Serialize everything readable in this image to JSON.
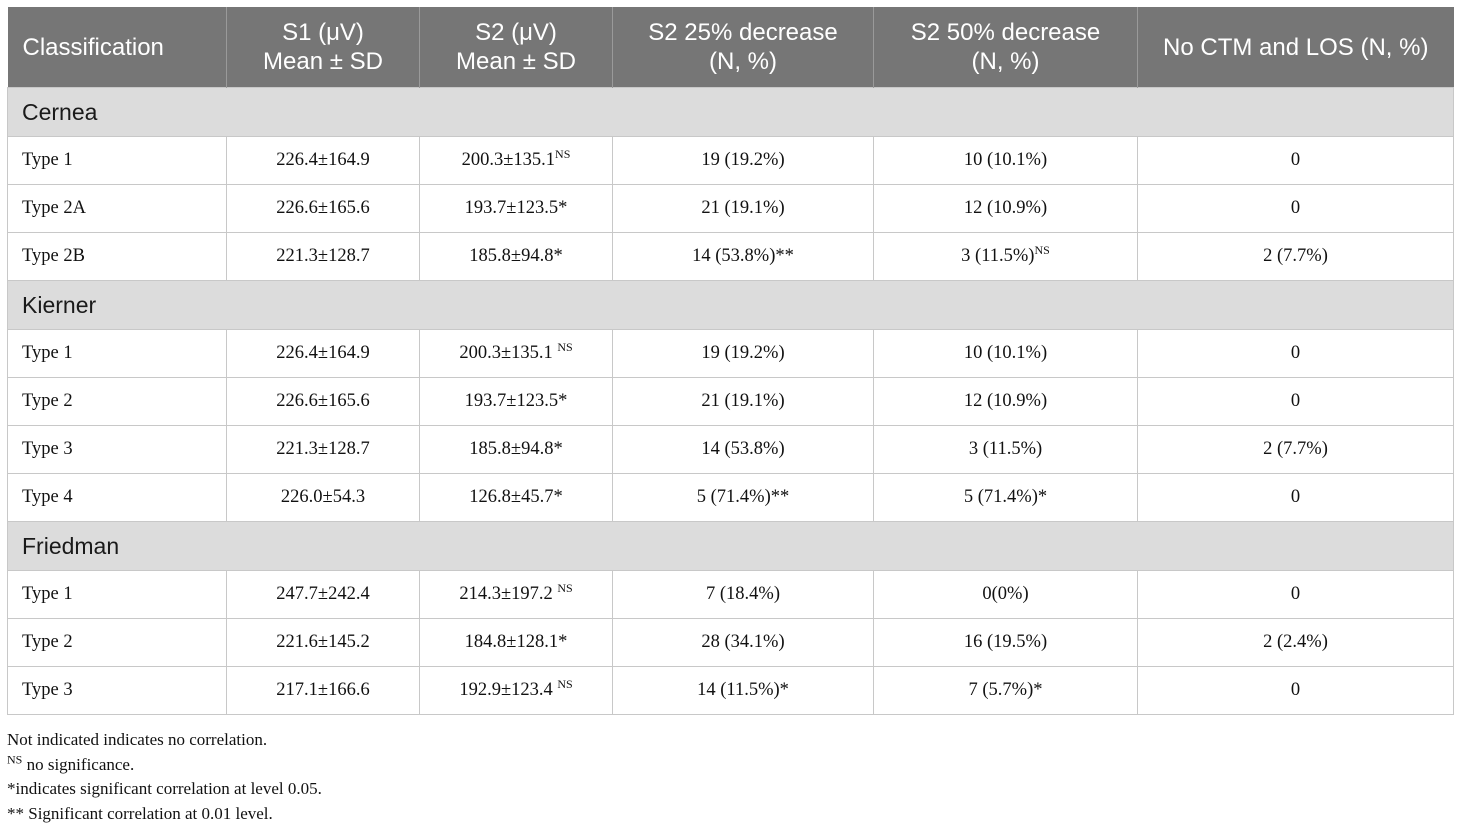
{
  "headers": [
    {
      "line1": "Classification",
      "line2": ""
    },
    {
      "line1": "S1 (μV)",
      "line2": "Mean ± SD"
    },
    {
      "line1": "S2 (μV)",
      "line2": "Mean ± SD"
    },
    {
      "line1": "S2 25% decrease",
      "line2": "(N, %)"
    },
    {
      "line1": "S2 50% decrease",
      "line2": "(N, %)"
    },
    {
      "line1": "No CTM and LOS (N, %)",
      "line2": ""
    }
  ],
  "groups": [
    {
      "name": "Cernea",
      "rows": [
        {
          "type": "Type 1",
          "s1": "226.4±164.9",
          "s2": "200.3±135.1",
          "s2_sup": "NS",
          "d25": "19 (19.2%)",
          "d25_sup": "",
          "d50": "10 (10.1%)",
          "d50_sup": "",
          "no_ctm": "0"
        },
        {
          "type": "Type 2A",
          "s1": "226.6±165.6",
          "s2": "193.7±123.5*",
          "s2_sup": "",
          "d25": "21 (19.1%)",
          "d25_sup": "",
          "d50": "12 (10.9%)",
          "d50_sup": "",
          "no_ctm": "0"
        },
        {
          "type": "Type 2B",
          "s1": "221.3±128.7",
          "s2": "185.8±94.8*",
          "s2_sup": "",
          "d25": "14 (53.8%)**",
          "d25_sup": "",
          "d50": "3 (11.5%)",
          "d50_sup": "NS",
          "no_ctm": "2 (7.7%)"
        }
      ]
    },
    {
      "name": "Kierner",
      "rows": [
        {
          "type": "Type 1",
          "s1": "226.4±164.9",
          "s2": "200.3±135.1 ",
          "s2_sup": "NS",
          "d25": "19 (19.2%)",
          "d25_sup": "",
          "d50": "10 (10.1%)",
          "d50_sup": "",
          "no_ctm": "0"
        },
        {
          "type": "Type 2",
          "s1": "226.6±165.6",
          "s2": "193.7±123.5*",
          "s2_sup": "",
          "d25": "21 (19.1%)",
          "d25_sup": "",
          "d50": "12 (10.9%)",
          "d50_sup": "",
          "no_ctm": "0"
        },
        {
          "type": "Type 3",
          "s1": "221.3±128.7",
          "s2": "185.8±94.8*",
          "s2_sup": "",
          "d25": "14 (53.8%)",
          "d25_sup": "",
          "d50": "3 (11.5%)",
          "d50_sup": "",
          "no_ctm": "2 (7.7%)"
        },
        {
          "type": "Type 4",
          "s1": "226.0±54.3",
          "s2": "126.8±45.7*",
          "s2_sup": "",
          "d25": "5 (71.4%)**",
          "d25_sup": "",
          "d50": "5 (71.4%)*",
          "d50_sup": "",
          "no_ctm": "0"
        }
      ]
    },
    {
      "name": "Friedman",
      "rows": [
        {
          "type": "Type 1",
          "s1": "247.7±242.4",
          "s2": "214.3±197.2 ",
          "s2_sup": "NS",
          "d25": "7 (18.4%)",
          "d25_sup": "",
          "d50": "0(0%)",
          "d50_sup": "",
          "no_ctm": "0"
        },
        {
          "type": "Type 2",
          "s1": "221.6±145.2",
          "s2": "184.8±128.1*",
          "s2_sup": "",
          "d25": "28 (34.1%)",
          "d25_sup": "",
          "d50": "16 (19.5%)",
          "d50_sup": "",
          "no_ctm": "2 (2.4%)"
        },
        {
          "type": "Type 3",
          "s1": "217.1±166.6",
          "s2": "192.9±123.4 ",
          "s2_sup": "NS",
          "d25": "14 (11.5%)*",
          "d25_sup": "",
          "d50": "7 (5.7%)*",
          "d50_sup": "",
          "no_ctm": "0"
        }
      ]
    }
  ],
  "footnotes": [
    {
      "sup": "",
      "text": "Not indicated indicates no correlation."
    },
    {
      "sup": "NS",
      "text": " no significance."
    },
    {
      "sup": "",
      "text": "*indicates significant correlation at level 0.05."
    },
    {
      "sup": "",
      "text": "** Significant correlation at 0.01 level."
    }
  ]
}
